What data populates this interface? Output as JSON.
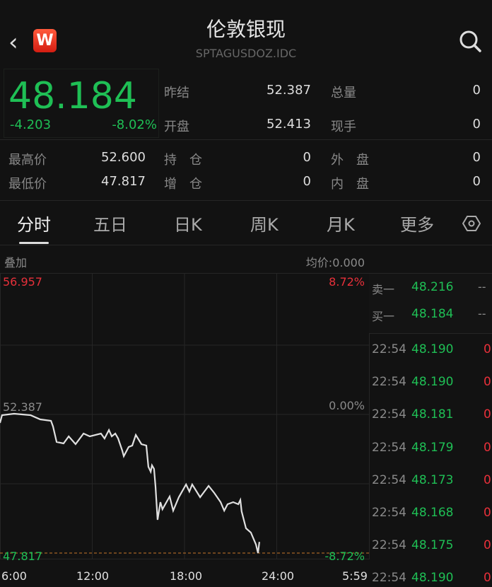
{
  "header": {
    "title": "伦敦银现",
    "code": "SPTAGUSDOZ.IDC",
    "logo_letter": "W"
  },
  "quote": {
    "price": "48.184",
    "change": "-4.203",
    "change_pct": "-8.02%",
    "stats": [
      {
        "label": "昨结",
        "value": "52.387"
      },
      {
        "label": "总量",
        "value": "0"
      },
      {
        "label": "开盘",
        "value": "52.413"
      },
      {
        "label": "现手",
        "value": "0"
      },
      {
        "label": "最高价",
        "value": "52.600"
      },
      {
        "label": "持　仓",
        "value": "0"
      },
      {
        "label": "外　盘",
        "value": "0"
      },
      {
        "label": "最低价",
        "value": "47.817"
      },
      {
        "label": "增　仓",
        "value": "0"
      },
      {
        "label": "内　盘",
        "value": "0"
      }
    ]
  },
  "tabs": [
    "分时",
    "五日",
    "日K",
    "周K",
    "月K",
    "更多"
  ],
  "chart_bar": {
    "overlay": "叠加",
    "avg": "均价:0.000"
  },
  "chart_data": {
    "type": "line",
    "y_max_label": "56.957",
    "y_mid_label": "52.387",
    "y_min_label": "47.817",
    "pct_max": "8.72%",
    "pct_mid": "0.00%",
    "pct_min": "-8.72%",
    "ylim": [
      47.817,
      56.957
    ],
    "x_ticks": [
      "6:00",
      "12:00",
      "18:00",
      "24:00",
      "5:59"
    ],
    "line_color": "#e0e0e0",
    "low_line_color": "#c8782a",
    "points": [
      [
        "6:00",
        52.107
      ],
      [
        "6:08",
        52.364
      ],
      [
        "6:55",
        52.41
      ],
      [
        "7:59",
        52.364
      ],
      [
        "8:37",
        52.224
      ],
      [
        "9:19",
        52.177
      ],
      [
        "9:27",
        51.991
      ],
      [
        "9:41",
        51.478
      ],
      [
        "10:08",
        51.431
      ],
      [
        "10:28",
        51.664
      ],
      [
        "10:55",
        51.408
      ],
      [
        "11:26",
        51.757
      ],
      [
        "11:50",
        51.664
      ],
      [
        "12:34",
        51.757
      ],
      [
        "12:48",
        51.594
      ],
      [
        "13:05",
        51.874
      ],
      [
        "13:16",
        51.664
      ],
      [
        "13:30",
        51.757
      ],
      [
        "13:41",
        51.594
      ],
      [
        "13:57",
        51.198
      ],
      [
        "14:03",
        51.011
      ],
      [
        "14:22",
        51.314
      ],
      [
        "14:36",
        51.361
      ],
      [
        "14:50",
        51.711
      ],
      [
        "15:12",
        51.408
      ],
      [
        "15:31",
        51.361
      ],
      [
        "15:39",
        50.661
      ],
      [
        "15:48",
        50.498
      ],
      [
        "15:53",
        50.708
      ],
      [
        "16:01",
        50.591
      ],
      [
        "16:07",
        50.008
      ],
      [
        "16:15",
        48.913
      ],
      [
        "16:26",
        49.496
      ],
      [
        "16:34",
        49.262
      ],
      [
        "17:02",
        49.682
      ],
      [
        "17:16",
        49.216
      ],
      [
        "17:38",
        49.659
      ],
      [
        "18:06",
        50.078
      ],
      [
        "18:19",
        49.845
      ],
      [
        "18:30",
        50.078
      ],
      [
        "19:01",
        49.659
      ],
      [
        "19:34",
        50.032
      ],
      [
        "19:56",
        49.799
      ],
      [
        "20:21",
        49.496
      ],
      [
        "20:35",
        49.216
      ],
      [
        "20:48",
        49.426
      ],
      [
        "21:10",
        49.496
      ],
      [
        "21:30",
        49.426
      ],
      [
        "21:38",
        49.566
      ],
      [
        "21:43",
        49.193
      ],
      [
        "22:00",
        48.633
      ],
      [
        "22:19",
        48.493
      ],
      [
        "22:39",
        48.096
      ],
      [
        "22:47",
        47.817
      ],
      [
        "22:52",
        48.184
      ]
    ]
  },
  "orderbook": [
    {
      "label": "卖一",
      "price": "48.216",
      "vol": "--"
    },
    {
      "label": "买一",
      "price": "48.184",
      "vol": "--"
    }
  ],
  "ticks": [
    {
      "t": "22:54",
      "p": "48.190",
      "v": "0"
    },
    {
      "t": "22:54",
      "p": "48.190",
      "v": "0"
    },
    {
      "t": "22:54",
      "p": "48.181",
      "v": "0"
    },
    {
      "t": "22:54",
      "p": "48.179",
      "v": "0"
    },
    {
      "t": "22:54",
      "p": "48.173",
      "v": "0"
    },
    {
      "t": "22:54",
      "p": "48.168",
      "v": "0"
    },
    {
      "t": "22:54",
      "p": "48.175",
      "v": "0"
    },
    {
      "t": "22:54",
      "p": "48.190",
      "v": "0"
    }
  ]
}
